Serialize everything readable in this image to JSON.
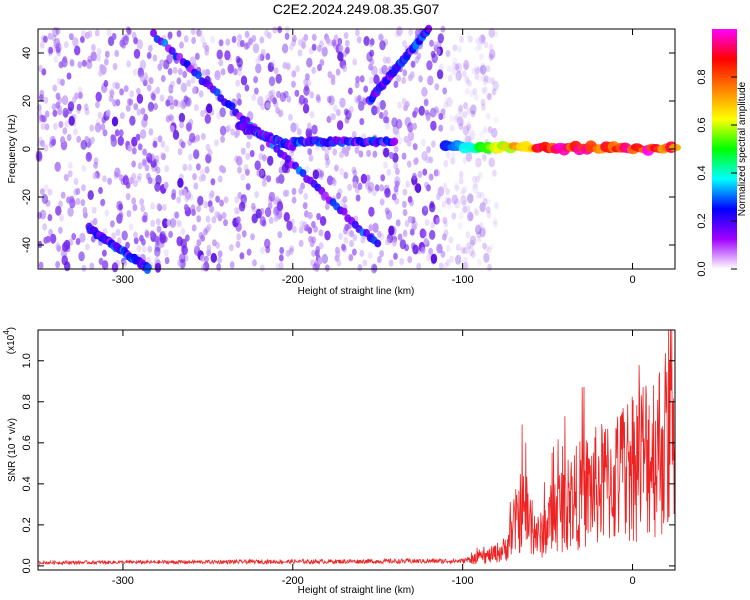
{
  "title": "C2E2.2024.249.08.35.G07",
  "chart_data": [
    {
      "type": "heatmap",
      "xlabel": "Height of straight line (km)",
      "ylabel": "Frequency (Hz)",
      "xlim": [
        -350,
        25
      ],
      "ylim": [
        -50,
        50
      ],
      "xticks": [
        "-300",
        "-200",
        "-100",
        "0"
      ],
      "yticks": [
        "-40",
        "-20",
        "0",
        "20",
        "40"
      ],
      "colorbar": {
        "label": "Normalized spectral amplitude",
        "range": [
          0,
          1
        ],
        "ticks": [
          "0.0",
          "0.2",
          "0.4",
          "0.6",
          "0.8"
        ],
        "colors": [
          "#ffffff",
          "#a000ff",
          "#0000ff",
          "#00ffff",
          "#00ff00",
          "#ffff00",
          "#ff8000",
          "#ff0000",
          "#ff00ff"
        ]
      },
      "features": [
        {
          "x": [
            -282,
            -150
          ],
          "y": [
            48,
            -40
          ]
        },
        {
          "x": [
            -232,
            -200
          ],
          "y": [
            10,
            1
          ]
        },
        {
          "x": [
            -200,
            -140
          ],
          "y": [
            3,
            3
          ]
        },
        {
          "x": [
            -320,
            -285
          ],
          "y": [
            -33,
            -50
          ]
        },
        {
          "x": [
            -155,
            -120
          ],
          "y": [
            20,
            50
          ]
        },
        {
          "x": [
            -110,
            25
          ],
          "y": [
            1,
            0
          ]
        }
      ],
      "noise_extent_x": [
        -350,
        -90
      ]
    },
    {
      "type": "line",
      "xlabel": "Height of straight line (km)",
      "ylabel": "SNR (10 * v/v)",
      "y_multiplier": "(x10",
      "y_exponent": "4",
      "xlim": [
        -350,
        25
      ],
      "ylim": [
        -0.02,
        1.15
      ],
      "xticks": [
        "-300",
        "-200",
        "-100",
        "0"
      ],
      "yticks": [
        "0.0",
        "0.2",
        "0.4",
        "0.6",
        "0.8",
        "1.0"
      ],
      "color": "#ee2222",
      "envelope_x": [
        -350,
        -100,
        -85,
        -75,
        -70,
        -65,
        -55,
        -45,
        -30,
        -20,
        -10,
        0,
        10,
        20,
        25
      ],
      "envelope_y": [
        0.02,
        0.03,
        0.07,
        0.12,
        0.28,
        0.42,
        0.2,
        0.4,
        0.52,
        0.58,
        0.62,
        0.75,
        0.82,
        0.9,
        0.95
      ]
    }
  ]
}
